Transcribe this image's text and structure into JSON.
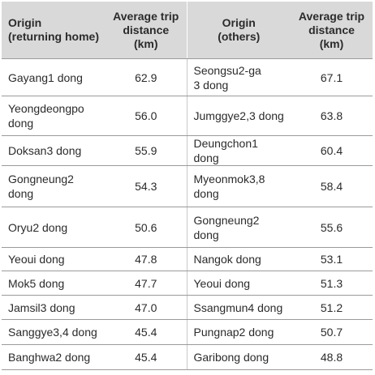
{
  "headers": {
    "origin_home": [
      "Origin",
      "(returning home)"
    ],
    "distance_home": [
      "Average trip",
      "distance",
      "(km)"
    ],
    "origin_others": [
      "Origin",
      "(others)"
    ],
    "distance_others": [
      "Average trip",
      "distance",
      "(km)"
    ]
  },
  "rows": [
    {
      "home": [
        "Gayang1 dong"
      ],
      "home_km": "62.9",
      "others": [
        "Seongsu2-ga",
        "3 dong"
      ],
      "others_km": "67.1"
    },
    {
      "home": [
        "Yeongdeongpo",
        "dong"
      ],
      "home_km": "56.0",
      "others": [
        "Jumggye2,3 dong"
      ],
      "others_km": "63.8"
    },
    {
      "home": [
        "Doksan3 dong"
      ],
      "home_km": "55.9",
      "others": [
        "Deungchon1 dong"
      ],
      "others_km": "60.4"
    },
    {
      "home": [
        "Gongneung2 dong"
      ],
      "home_km": "54.3",
      "others": [
        "Myeonmok3,8",
        "dong"
      ],
      "others_km": "58.4"
    },
    {
      "home": [
        "Oryu2 dong"
      ],
      "home_km": "50.6",
      "others": [
        "Gongneung2",
        "dong"
      ],
      "others_km": "55.6"
    },
    {
      "home": [
        "Yeoui dong"
      ],
      "home_km": "47.8",
      "others": [
        "Nangok dong"
      ],
      "others_km": "53.1"
    },
    {
      "home": [
        "Mok5 dong"
      ],
      "home_km": "47.7",
      "others": [
        "Yeoui dong"
      ],
      "others_km": "51.3"
    },
    {
      "home": [
        "Jamsil3 dong"
      ],
      "home_km": "47.0",
      "others": [
        "Ssangmun4 dong"
      ],
      "others_km": "51.2"
    },
    {
      "home": [
        "Sanggye3,4 dong"
      ],
      "home_km": "45.4",
      "others": [
        "Pungnap2 dong"
      ],
      "others_km": "50.7"
    },
    {
      "home": [
        "Banghwa2 dong"
      ],
      "home_km": "45.4",
      "others": [
        "Garibong dong"
      ],
      "others_km": "48.8"
    }
  ]
}
